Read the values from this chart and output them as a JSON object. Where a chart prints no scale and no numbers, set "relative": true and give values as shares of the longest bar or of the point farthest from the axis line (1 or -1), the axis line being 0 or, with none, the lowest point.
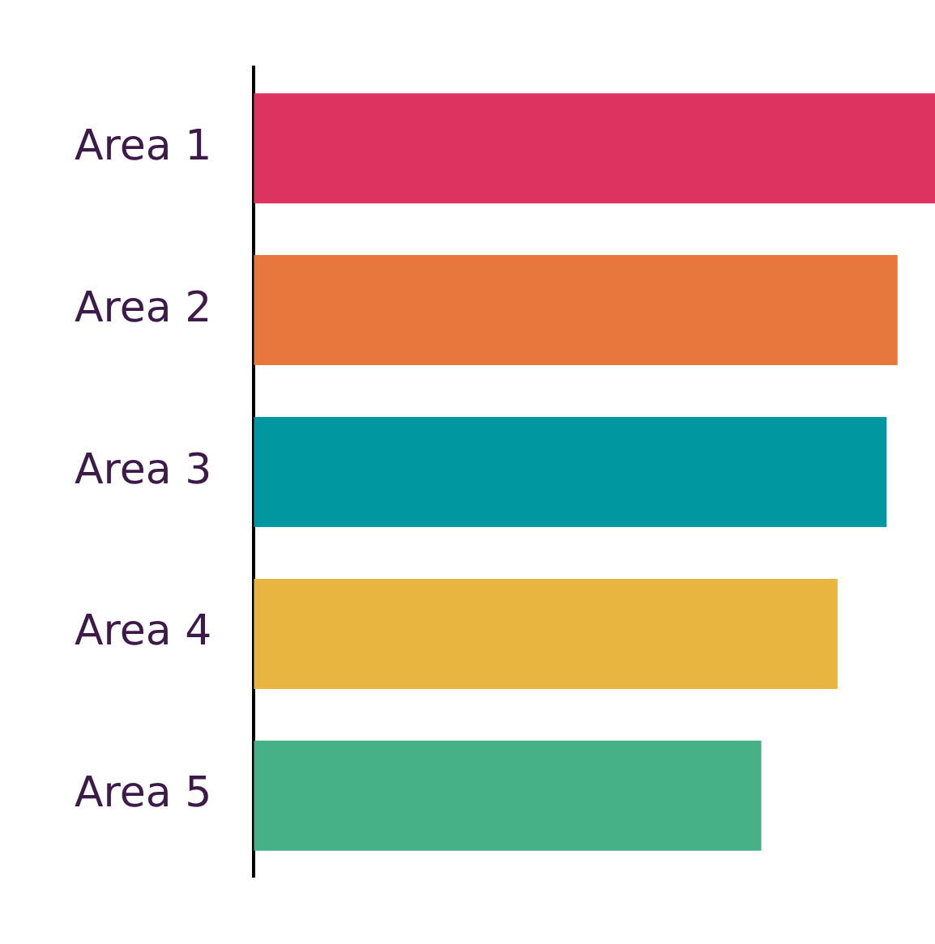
{
  "chart_data": {
    "type": "bar",
    "orientation": "horizontal",
    "relative": true,
    "categories": [
      "Area 1",
      "Area 2",
      "Area 3",
      "Area 4",
      "Area 5"
    ],
    "values": [
      1,
      0.945,
      0.929,
      0.857,
      0.745
    ],
    "colors": [
      "#dd3360",
      "#e8773e",
      "#0097a0",
      "#e8b540",
      "#46b087"
    ],
    "legend": false
  }
}
